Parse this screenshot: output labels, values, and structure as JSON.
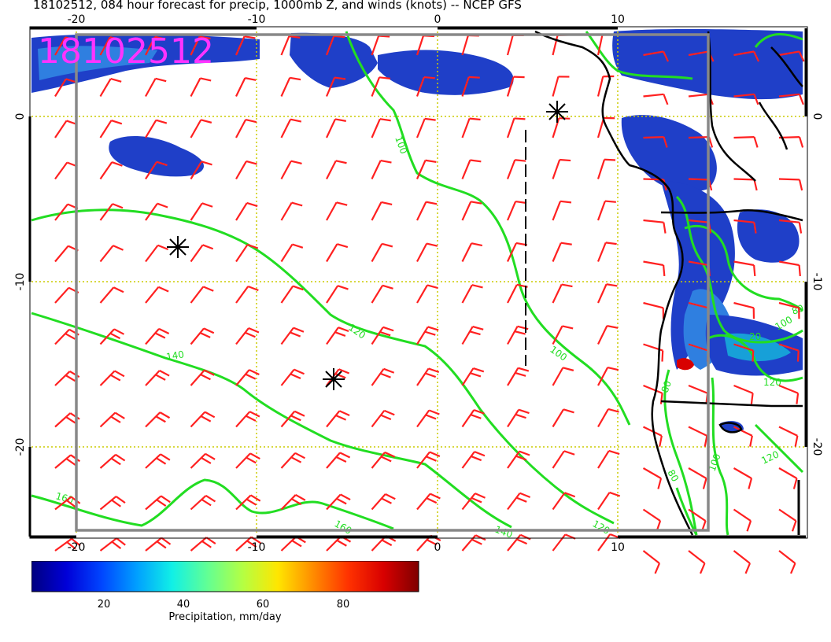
{
  "header": {
    "title": "18102512, 084 hour forecast for precip, 1000mb Z, and winds (knots) -- NCEP GFS",
    "stamp": "18102512"
  },
  "axes": {
    "lon_ticks": [
      "-20",
      "-10",
      "0",
      "10"
    ],
    "lat_ticks": [
      "0",
      "-10",
      "-20"
    ]
  },
  "contours": {
    "labels": [
      "100",
      "120",
      "140",
      "160",
      "100",
      "120",
      "140",
      "160",
      "80",
      "100",
      "120",
      "80",
      "100",
      "20",
      "120",
      "80"
    ]
  },
  "legend": {
    "tick_labels": [
      "20",
      "40",
      "60",
      "80"
    ],
    "caption": "Precipitation, mm/day",
    "colors": [
      "#00007f",
      "#0000d8",
      "#0046ff",
      "#00a0ff",
      "#11f0e6",
      "#62ff94",
      "#b4ff43",
      "#ffe600",
      "#ff8c00",
      "#ff3200",
      "#d80000",
      "#7f0000"
    ]
  },
  "colors": {
    "wind": "#ff2020",
    "contour": "#22dd22",
    "stamp": "#ff33ff",
    "grid": "#cccc00",
    "frame": "#888888"
  }
}
